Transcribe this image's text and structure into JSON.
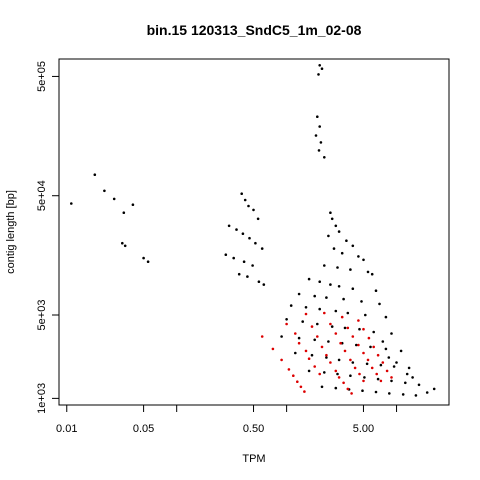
{
  "chart_data": {
    "type": "scatter",
    "title": "bin.15 120313_SndC5_1m_02-08",
    "xlabel": "TPM",
    "ylabel": "contig length [bp]",
    "x_scale": "log",
    "y_scale": "log",
    "xlim": [
      0.0085,
      30
    ],
    "ylim": [
      880,
      700000
    ],
    "x_ticks": [
      0.01,
      0.05,
      0.5,
      5.0
    ],
    "x_tick_labels": [
      "0.01",
      "0.05",
      "0.50",
      "5.00"
    ],
    "x_minor_ticks": [
      0.1,
      1.0,
      10.0
    ],
    "y_ticks": [
      1000,
      5000,
      50000,
      500000
    ],
    "y_tick_labels": [
      "1e+03",
      "5e+03",
      "5e+04",
      "5e+05"
    ],
    "grid": false,
    "colors": {
      "series_black": "#000000",
      "series_red": "#dd0000"
    },
    "series": [
      {
        "color": "#000000",
        "points": [
          [
            0.011,
            43000
          ],
          [
            0.018,
            75000
          ],
          [
            0.022,
            55000
          ],
          [
            0.027,
            47000
          ],
          [
            0.033,
            36000
          ],
          [
            0.04,
            42000
          ],
          [
            0.032,
            20000
          ],
          [
            0.034,
            19000
          ],
          [
            0.05,
            15000
          ],
          [
            0.055,
            14000
          ],
          [
            0.39,
            52000
          ],
          [
            0.42,
            46000
          ],
          [
            0.45,
            41000
          ],
          [
            0.5,
            38000
          ],
          [
            0.55,
            32000
          ],
          [
            0.3,
            28000
          ],
          [
            0.35,
            26000
          ],
          [
            0.4,
            24000
          ],
          [
            0.46,
            22000
          ],
          [
            0.52,
            20000
          ],
          [
            0.6,
            18000
          ],
          [
            0.28,
            16000
          ],
          [
            0.33,
            15000
          ],
          [
            0.41,
            14000
          ],
          [
            0.49,
            13000
          ],
          [
            0.37,
            11000
          ],
          [
            0.44,
            10500
          ],
          [
            0.56,
            9500
          ],
          [
            0.62,
            9000
          ],
          [
            2.0,
            620000
          ],
          [
            2.1,
            580000
          ],
          [
            1.95,
            520000
          ],
          [
            1.9,
            230000
          ],
          [
            2.0,
            190000
          ],
          [
            1.85,
            160000
          ],
          [
            2.05,
            140000
          ],
          [
            1.97,
            120000
          ],
          [
            2.2,
            105000
          ],
          [
            2.5,
            36000
          ],
          [
            2.6,
            32000
          ],
          [
            2.8,
            28000
          ],
          [
            3.0,
            25000
          ],
          [
            2.4,
            23000
          ],
          [
            3.5,
            21000
          ],
          [
            4.0,
            19000
          ],
          [
            2.7,
            18000
          ],
          [
            3.2,
            16500
          ],
          [
            4.5,
            15500
          ],
          [
            5.0,
            14500
          ],
          [
            2.2,
            13000
          ],
          [
            2.9,
            12500
          ],
          [
            3.8,
            12000
          ],
          [
            5.5,
            11500
          ],
          [
            6.0,
            11000
          ],
          [
            1.6,
            10000
          ],
          [
            2.0,
            9500
          ],
          [
            2.5,
            9000
          ],
          [
            3.0,
            8700
          ],
          [
            4.0,
            8300
          ],
          [
            6.5,
            8000
          ],
          [
            1.3,
            7500
          ],
          [
            1.8,
            7200
          ],
          [
            2.3,
            7000
          ],
          [
            3.3,
            6800
          ],
          [
            4.8,
            6500
          ],
          [
            7.0,
            6200
          ],
          [
            1.1,
            6000
          ],
          [
            1.5,
            5800
          ],
          [
            2.0,
            5600
          ],
          [
            2.8,
            5400
          ],
          [
            3.6,
            5200
          ],
          [
            5.2,
            5000
          ],
          [
            8.0,
            4800
          ],
          [
            1.0,
            4600
          ],
          [
            1.4,
            4400
          ],
          [
            1.9,
            4200
          ],
          [
            2.6,
            4000
          ],
          [
            3.4,
            3900
          ],
          [
            4.6,
            3800
          ],
          [
            6.2,
            3600
          ],
          [
            9.0,
            3500
          ],
          [
            0.9,
            3300
          ],
          [
            1.3,
            3200
          ],
          [
            1.8,
            3100
          ],
          [
            2.4,
            3000
          ],
          [
            3.2,
            2900
          ],
          [
            4.3,
            2800
          ],
          [
            5.8,
            2700
          ],
          [
            8.0,
            2600
          ],
          [
            11.0,
            2500
          ],
          [
            1.2,
            2400
          ],
          [
            1.7,
            2300
          ],
          [
            2.3,
            2200
          ],
          [
            3.0,
            2100
          ],
          [
            4.0,
            2000
          ],
          [
            5.4,
            1950
          ],
          [
            7.2,
            1900
          ],
          [
            9.5,
            1850
          ],
          [
            13.0,
            1800
          ],
          [
            1.6,
            1700
          ],
          [
            2.2,
            1650
          ],
          [
            2.9,
            1600
          ],
          [
            3.8,
            1550
          ],
          [
            5.1,
            1500
          ],
          [
            6.8,
            1450
          ],
          [
            9.0,
            1400
          ],
          [
            12.0,
            1350
          ],
          [
            16.0,
            1300
          ],
          [
            2.1,
            1250
          ],
          [
            2.8,
            1220
          ],
          [
            3.7,
            1190
          ],
          [
            4.9,
            1160
          ],
          [
            6.5,
            1130
          ],
          [
            8.6,
            1100
          ],
          [
            11.5,
            1080
          ],
          [
            15.0,
            1060
          ],
          [
            19.0,
            1120
          ],
          [
            22.0,
            1200
          ],
          [
            7.5,
            3000
          ],
          [
            8.5,
            2200
          ],
          [
            10.0,
            2000
          ],
          [
            12.5,
            1600
          ],
          [
            14.0,
            1500
          ]
        ]
      },
      {
        "color": "#dd0000",
        "points": [
          [
            0.6,
            3300
          ],
          [
            0.75,
            2600
          ],
          [
            0.9,
            2100
          ],
          [
            1.05,
            1750
          ],
          [
            1.15,
            1550
          ],
          [
            1.25,
            1380
          ],
          [
            1.35,
            1250
          ],
          [
            1.45,
            1140
          ],
          [
            1.5,
            5100
          ],
          [
            1.7,
            4000
          ],
          [
            1.9,
            3300
          ],
          [
            2.1,
            2700
          ],
          [
            2.3,
            2300
          ],
          [
            2.5,
            2000
          ],
          [
            2.8,
            1700
          ],
          [
            3.0,
            1500
          ],
          [
            3.3,
            1350
          ],
          [
            3.6,
            1200
          ],
          [
            3.9,
            1100
          ],
          [
            2.2,
            5200
          ],
          [
            2.5,
            4200
          ],
          [
            2.8,
            3500
          ],
          [
            3.1,
            2900
          ],
          [
            3.4,
            2500
          ],
          [
            3.8,
            2100
          ],
          [
            4.2,
            1800
          ],
          [
            4.6,
            1600
          ],
          [
            5.0,
            1400
          ],
          [
            3.2,
            4800
          ],
          [
            3.6,
            3900
          ],
          [
            4.0,
            3300
          ],
          [
            4.5,
            2800
          ],
          [
            5.0,
            2400
          ],
          [
            5.5,
            2100
          ],
          [
            6.0,
            1800
          ],
          [
            6.6,
            1600
          ],
          [
            7.2,
            1400
          ],
          [
            4.5,
            4500
          ],
          [
            5.0,
            3800
          ],
          [
            5.6,
            3200
          ],
          [
            6.2,
            2700
          ],
          [
            6.8,
            2300
          ],
          [
            7.5,
            2000
          ],
          [
            8.2,
            1700
          ],
          [
            9.0,
            1500
          ],
          [
            1.0,
            4200
          ],
          [
            1.2,
            3500
          ],
          [
            1.3,
            2900
          ],
          [
            1.5,
            2500
          ],
          [
            1.6,
            2150
          ],
          [
            1.8,
            1850
          ],
          [
            2.0,
            1600
          ]
        ]
      }
    ]
  }
}
